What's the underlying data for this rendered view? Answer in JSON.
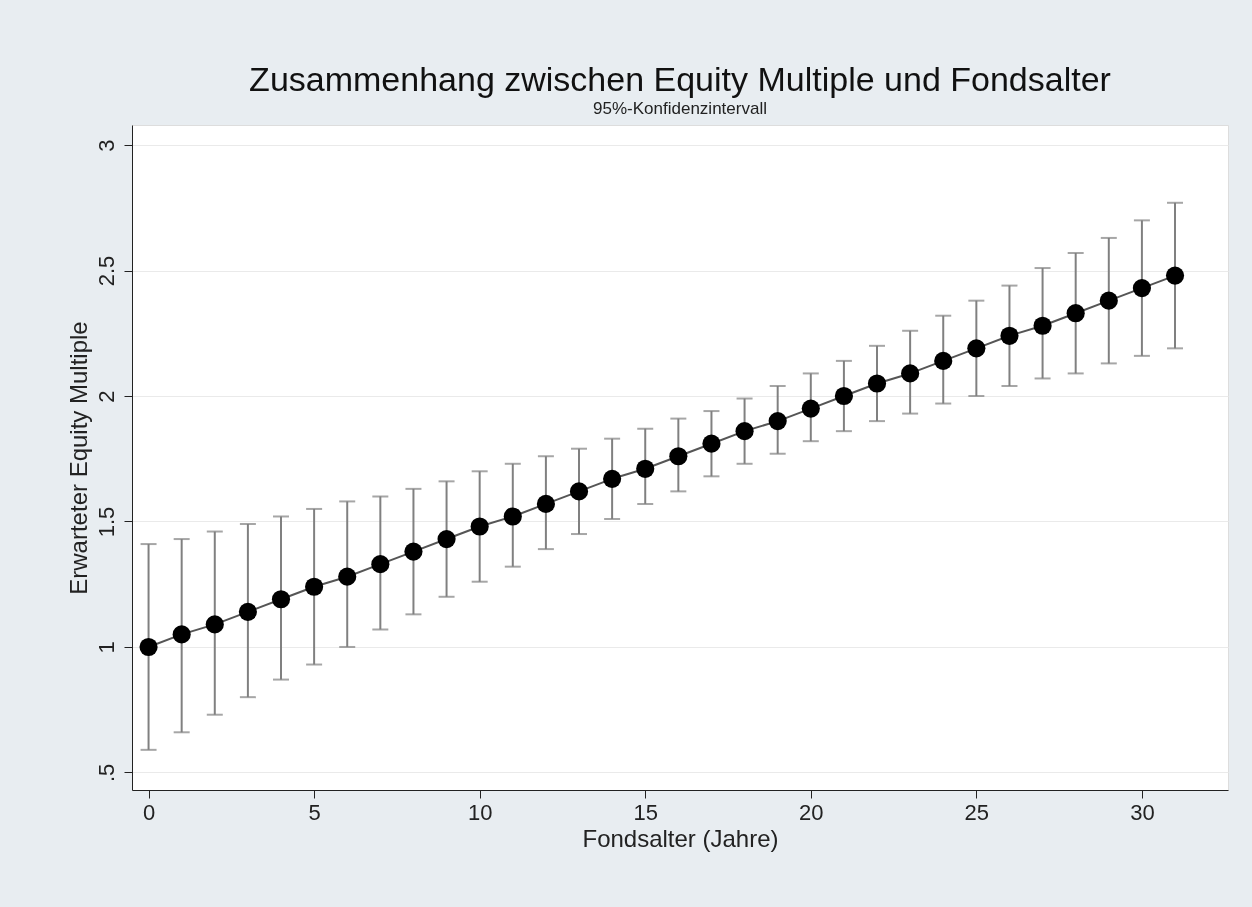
{
  "chart_data": {
    "type": "line",
    "title": "Zusammenhang zwischen Equity Multiple und Fondsalter",
    "subtitle": "95%-Konfidenzintervall",
    "xlabel": "Fondsalter (Jahre)",
    "ylabel": "Erwarteter Equity Multiple",
    "x": [
      0,
      1,
      2,
      3,
      4,
      5,
      6,
      7,
      8,
      9,
      10,
      11,
      12,
      13,
      14,
      15,
      16,
      17,
      18,
      19,
      20,
      21,
      22,
      23,
      24,
      25,
      26,
      27,
      28,
      29,
      30,
      31
    ],
    "series": [
      {
        "color": "#000000",
        "marker": "circle",
        "line_style": "solid",
        "values": [
          1.0,
          1.05,
          1.09,
          1.14,
          1.19,
          1.24,
          1.28,
          1.33,
          1.38,
          1.43,
          1.48,
          1.52,
          1.57,
          1.62,
          1.67,
          1.71,
          1.76,
          1.81,
          1.86,
          1.9,
          1.95,
          2.0,
          2.05,
          2.09,
          2.14,
          2.19,
          2.24,
          2.28,
          2.33,
          2.38,
          2.43,
          2.48
        ],
        "errors": [
          [
            0.59,
            1.41
          ],
          [
            0.66,
            1.43
          ],
          [
            0.73,
            1.46
          ],
          [
            0.8,
            1.49
          ],
          [
            0.87,
            1.52
          ],
          [
            0.93,
            1.55
          ],
          [
            1.0,
            1.58
          ],
          [
            1.07,
            1.6
          ],
          [
            1.13,
            1.63
          ],
          [
            1.2,
            1.66
          ],
          [
            1.26,
            1.7
          ],
          [
            1.32,
            1.73
          ],
          [
            1.39,
            1.76
          ],
          [
            1.45,
            1.79
          ],
          [
            1.51,
            1.83
          ],
          [
            1.57,
            1.87
          ],
          [
            1.62,
            1.91
          ],
          [
            1.68,
            1.94
          ],
          [
            1.73,
            1.99
          ],
          [
            1.77,
            2.04
          ],
          [
            1.82,
            2.09
          ],
          [
            1.86,
            2.14
          ],
          [
            1.9,
            2.2
          ],
          [
            1.93,
            2.26
          ],
          [
            1.97,
            2.32
          ],
          [
            2.0,
            2.38
          ],
          [
            2.04,
            2.44
          ],
          [
            2.07,
            2.51
          ],
          [
            2.09,
            2.57
          ],
          [
            2.13,
            2.63
          ],
          [
            2.16,
            2.7
          ],
          [
            2.19,
            2.77
          ]
        ]
      }
    ],
    "xlim": [
      -0.5,
      32.6
    ],
    "ylim": [
      0.43,
      3.08
    ],
    "xticks": [
      0,
      5,
      10,
      15,
      20,
      25,
      30
    ],
    "yticks": [
      {
        "value": 0.5,
        "label": ".5"
      },
      1,
      1.5,
      2,
      2.5,
      3
    ],
    "grid": "y"
  }
}
